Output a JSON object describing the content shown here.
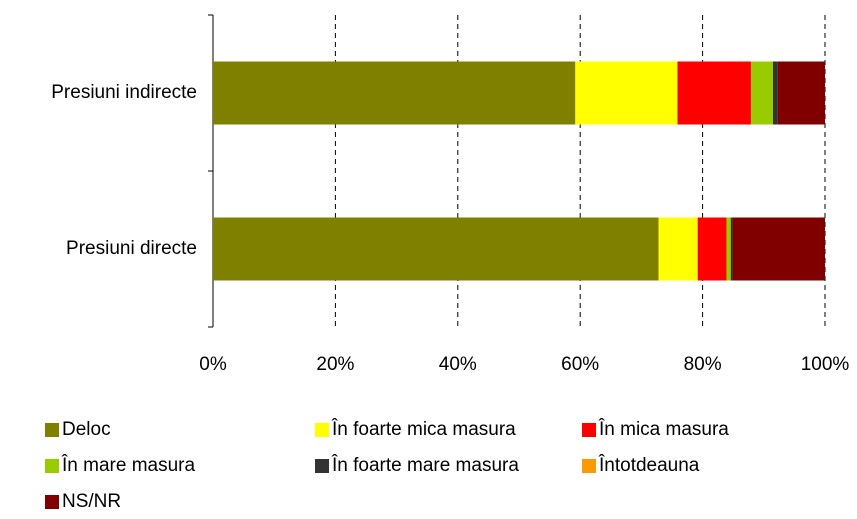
{
  "chart_data": {
    "type": "stacked-barh",
    "categories": [
      "Presiuni indirecte",
      "Presiuni directe"
    ],
    "series": [
      {
        "name": "Deloc",
        "color": "#808000",
        "values": [
          59.2,
          72.8
        ]
      },
      {
        "name": "În foarte mica masura",
        "color": "#ffff00",
        "values": [
          16.7,
          6.4
        ]
      },
      {
        "name": "În mica masura",
        "color": "#ff0000",
        "values": [
          12.0,
          4.7
        ]
      },
      {
        "name": "În mare masura",
        "color": "#99cc00",
        "values": [
          3.6,
          0.7
        ]
      },
      {
        "name": "În foarte mare masura",
        "color": "#333333",
        "values": [
          0.8,
          0.3
        ]
      },
      {
        "name": "Întotdeauna",
        "color": "#ff9900",
        "values": [
          0,
          0
        ]
      },
      {
        "name": "NS/NR",
        "color": "#800000",
        "values": [
          7.7,
          15.1
        ]
      }
    ],
    "xlim": [
      0,
      100
    ],
    "xticks": [
      {
        "value": 0,
        "label": "0%"
      },
      {
        "value": 20,
        "label": "20%"
      },
      {
        "value": 40,
        "label": "40%"
      },
      {
        "value": 60,
        "label": "60%"
      },
      {
        "value": 80,
        "label": "80%"
      },
      {
        "value": 100,
        "label": "100%"
      }
    ],
    "grid": true
  }
}
